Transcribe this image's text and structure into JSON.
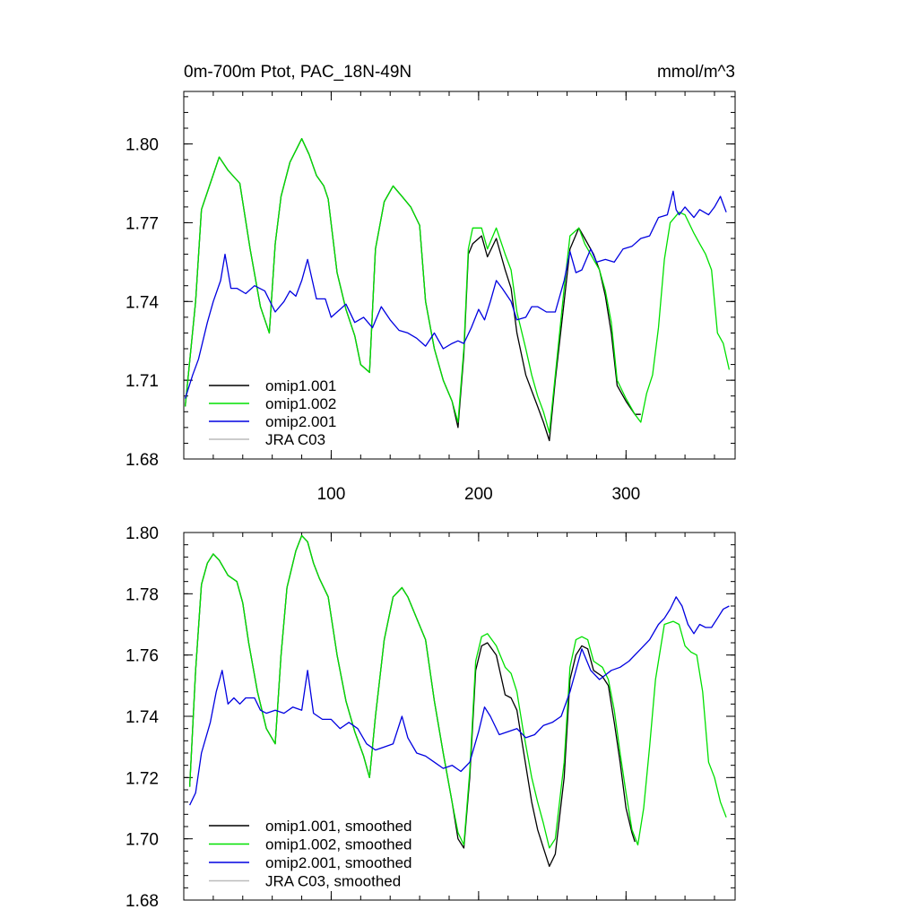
{
  "title_left": "0m-700m Ptot, PAC_18N-49N",
  "title_right": "mmol/m^3",
  "series_colors": {
    "omip1.001": "#000000",
    "omip1.002": "#00e000",
    "omip2.001": "#0000e0",
    "JRA C03": "#bbbbbb"
  },
  "chart_data": [
    {
      "type": "line",
      "title": "0m-700m Ptot, PAC_18N-49N",
      "units": "mmol/m^3",
      "xlim": [
        0,
        374
      ],
      "ylim": [
        1.68,
        1.82
      ],
      "x_ticks": [
        100,
        200,
        300
      ],
      "x_tick_labels": [
        "100",
        "200",
        "300"
      ],
      "y_ticks": [
        1.68,
        1.71,
        1.74,
        1.77,
        1.8
      ],
      "y_tick_labels": [
        "1.68",
        "1.71",
        "1.74",
        "1.77",
        "1.80"
      ],
      "legend": [
        "omip1.001",
        "omip1.002",
        "omip2.001",
        "JRA C03"
      ],
      "series": [
        {
          "name": "omip1.001",
          "color": "#000000",
          "x": [
            1,
            8,
            12,
            18,
            24,
            30,
            38,
            45,
            52,
            58,
            62,
            66,
            72,
            80,
            85,
            90,
            95,
            98,
            104,
            110,
            116,
            120,
            126,
            130,
            136,
            142,
            148,
            154,
            160,
            164,
            170,
            176,
            182,
            186,
            190,
            193,
            196,
            202,
            206,
            212,
            218,
            222,
            226,
            232,
            236,
            240,
            244,
            248,
            252,
            258,
            262,
            268,
            272,
            278,
            282,
            286,
            290,
            294,
            300,
            306,
            310
          ],
          "y": [
            1.7,
            1.74,
            1.775,
            1.785,
            1.795,
            1.79,
            1.785,
            1.76,
            1.738,
            1.728,
            1.762,
            1.78,
            1.793,
            1.802,
            1.796,
            1.788,
            1.784,
            1.779,
            1.751,
            1.737,
            1.727,
            1.716,
            1.713,
            1.76,
            1.778,
            1.784,
            1.78,
            1.776,
            1.769,
            1.74,
            1.722,
            1.71,
            1.702,
            1.692,
            1.72,
            1.758,
            1.762,
            1.765,
            1.757,
            1.764,
            1.752,
            1.745,
            1.728,
            1.712,
            1.706,
            1.7,
            1.694,
            1.687,
            1.71,
            1.74,
            1.76,
            1.768,
            1.764,
            1.758,
            1.752,
            1.742,
            1.728,
            1.708,
            1.702,
            1.697,
            1.697
          ]
        },
        {
          "name": "omip1.002",
          "color": "#00e000",
          "x": [
            1,
            8,
            12,
            18,
            24,
            30,
            38,
            45,
            52,
            58,
            62,
            66,
            72,
            80,
            85,
            90,
            95,
            98,
            104,
            110,
            116,
            120,
            126,
            130,
            136,
            142,
            148,
            154,
            160,
            164,
            170,
            176,
            182,
            186,
            190,
            193,
            196,
            202,
            206,
            212,
            218,
            222,
            226,
            232,
            236,
            240,
            244,
            248,
            252,
            258,
            262,
            268,
            272,
            278,
            282,
            286,
            290,
            294,
            300,
            306,
            310,
            314,
            318,
            322,
            326,
            330,
            336,
            340,
            346,
            350,
            354,
            358,
            362,
            366,
            370
          ],
          "y": [
            1.7,
            1.74,
            1.775,
            1.785,
            1.795,
            1.79,
            1.785,
            1.76,
            1.738,
            1.728,
            1.762,
            1.78,
            1.793,
            1.802,
            1.796,
            1.788,
            1.784,
            1.779,
            1.751,
            1.737,
            1.727,
            1.716,
            1.713,
            1.76,
            1.778,
            1.784,
            1.78,
            1.776,
            1.769,
            1.74,
            1.722,
            1.71,
            1.702,
            1.694,
            1.722,
            1.76,
            1.768,
            1.768,
            1.76,
            1.768,
            1.758,
            1.752,
            1.736,
            1.722,
            1.712,
            1.704,
            1.698,
            1.69,
            1.712,
            1.745,
            1.765,
            1.768,
            1.762,
            1.756,
            1.752,
            1.744,
            1.732,
            1.71,
            1.703,
            1.697,
            1.694,
            1.705,
            1.712,
            1.73,
            1.756,
            1.77,
            1.774,
            1.773,
            1.766,
            1.762,
            1.758,
            1.752,
            1.728,
            1.724,
            1.714
          ]
        },
        {
          "name": "omip2.001",
          "color": "#0000e0",
          "x": [
            1,
            6,
            10,
            16,
            20,
            25,
            28,
            32,
            36,
            42,
            48,
            55,
            62,
            68,
            72,
            76,
            80,
            84,
            90,
            96,
            100,
            106,
            110,
            116,
            122,
            128,
            134,
            140,
            146,
            152,
            158,
            164,
            170,
            176,
            182,
            186,
            190,
            195,
            200,
            204,
            208,
            212,
            216,
            222,
            226,
            232,
            236,
            240,
            246,
            252,
            258,
            262,
            266,
            270,
            276,
            280,
            286,
            292,
            298,
            304,
            310,
            316,
            322,
            328,
            332,
            334,
            336,
            340,
            346,
            350,
            356,
            360,
            364,
            368
          ],
          "y": [
            1.703,
            1.712,
            1.718,
            1.732,
            1.74,
            1.748,
            1.758,
            1.745,
            1.745,
            1.743,
            1.746,
            1.744,
            1.736,
            1.74,
            1.744,
            1.742,
            1.748,
            1.756,
            1.741,
            1.741,
            1.734,
            1.737,
            1.739,
            1.732,
            1.734,
            1.73,
            1.738,
            1.733,
            1.729,
            1.728,
            1.726,
            1.723,
            1.728,
            1.722,
            1.724,
            1.725,
            1.724,
            1.73,
            1.737,
            1.733,
            1.74,
            1.748,
            1.745,
            1.74,
            1.733,
            1.734,
            1.738,
            1.738,
            1.736,
            1.736,
            1.748,
            1.759,
            1.751,
            1.752,
            1.76,
            1.755,
            1.756,
            1.755,
            1.76,
            1.761,
            1.764,
            1.765,
            1.772,
            1.773,
            1.782,
            1.775,
            1.773,
            1.776,
            1.772,
            1.775,
            1.773,
            1.776,
            1.78,
            1.774
          ]
        }
      ]
    },
    {
      "type": "line",
      "xlim": [
        0,
        374
      ],
      "ylim": [
        1.68,
        1.8
      ],
      "x_ticks": [
        100,
        200,
        300
      ],
      "y_ticks": [
        1.68,
        1.7,
        1.72,
        1.74,
        1.76,
        1.78,
        1.8
      ],
      "y_tick_labels": [
        "1.68",
        "1.70",
        "1.72",
        "1.74",
        "1.76",
        "1.78",
        "1.80"
      ],
      "legend": [
        "omip1.001, smoothed",
        "omip1.002, smoothed",
        "omip2.001, smoothed",
        "JRA C03, smoothed"
      ],
      "series": [
        {
          "name": "omip1.001, smoothed",
          "color": "#000000",
          "x": [
            4,
            8,
            12,
            16,
            20,
            24,
            30,
            36,
            40,
            44,
            50,
            56,
            62,
            66,
            70,
            76,
            80,
            84,
            88,
            92,
            98,
            104,
            110,
            116,
            122,
            126,
            130,
            136,
            142,
            148,
            152,
            158,
            164,
            170,
            176,
            182,
            186,
            190,
            194,
            198,
            202,
            206,
            212,
            218,
            222,
            226,
            230,
            236,
            240,
            244,
            248,
            252,
            258,
            262,
            266,
            270,
            274,
            278,
            284,
            288,
            292,
            296,
            300,
            304,
            306
          ],
          "y": [
            1.717,
            1.755,
            1.783,
            1.79,
            1.793,
            1.791,
            1.786,
            1.784,
            1.777,
            1.764,
            1.748,
            1.736,
            1.731,
            1.76,
            1.782,
            1.794,
            1.799,
            1.797,
            1.79,
            1.785,
            1.779,
            1.76,
            1.745,
            1.735,
            1.727,
            1.72,
            1.74,
            1.765,
            1.779,
            1.782,
            1.779,
            1.772,
            1.765,
            1.745,
            1.728,
            1.712,
            1.7,
            1.697,
            1.72,
            1.755,
            1.763,
            1.764,
            1.76,
            1.747,
            1.746,
            1.742,
            1.73,
            1.712,
            1.703,
            1.697,
            1.691,
            1.695,
            1.72,
            1.752,
            1.76,
            1.763,
            1.762,
            1.755,
            1.753,
            1.75,
            1.738,
            1.725,
            1.71,
            1.702,
            1.699
          ]
        },
        {
          "name": "omip1.002, smoothed",
          "color": "#00e000",
          "x": [
            4,
            8,
            12,
            16,
            20,
            24,
            30,
            36,
            40,
            44,
            50,
            56,
            62,
            66,
            70,
            76,
            80,
            84,
            88,
            92,
            98,
            104,
            110,
            116,
            122,
            126,
            130,
            136,
            142,
            148,
            152,
            158,
            164,
            170,
            176,
            182,
            186,
            190,
            194,
            198,
            202,
            206,
            212,
            218,
            222,
            226,
            230,
            236,
            240,
            244,
            248,
            252,
            258,
            262,
            266,
            270,
            274,
            278,
            284,
            288,
            292,
            296,
            300,
            304,
            308,
            312,
            316,
            320,
            326,
            332,
            336,
            340,
            344,
            348,
            352,
            356,
            360,
            364,
            368
          ],
          "y": [
            1.717,
            1.755,
            1.783,
            1.79,
            1.793,
            1.791,
            1.786,
            1.784,
            1.777,
            1.764,
            1.748,
            1.736,
            1.731,
            1.76,
            1.782,
            1.794,
            1.799,
            1.797,
            1.79,
            1.785,
            1.779,
            1.76,
            1.745,
            1.735,
            1.727,
            1.72,
            1.74,
            1.765,
            1.779,
            1.782,
            1.779,
            1.772,
            1.765,
            1.745,
            1.728,
            1.712,
            1.702,
            1.698,
            1.722,
            1.758,
            1.766,
            1.767,
            1.763,
            1.756,
            1.754,
            1.748,
            1.736,
            1.72,
            1.712,
            1.705,
            1.697,
            1.7,
            1.725,
            1.756,
            1.765,
            1.766,
            1.765,
            1.758,
            1.756,
            1.752,
            1.742,
            1.728,
            1.715,
            1.703,
            1.698,
            1.71,
            1.73,
            1.752,
            1.77,
            1.771,
            1.77,
            1.763,
            1.761,
            1.76,
            1.748,
            1.725,
            1.72,
            1.712,
            1.707
          ]
        },
        {
          "name": "omip2.001, smoothed",
          "color": "#0000e0",
          "x": [
            4,
            8,
            12,
            18,
            22,
            26,
            30,
            34,
            38,
            42,
            48,
            52,
            56,
            62,
            68,
            74,
            80,
            84,
            88,
            94,
            100,
            106,
            112,
            118,
            124,
            130,
            136,
            142,
            148,
            152,
            158,
            164,
            170,
            176,
            182,
            188,
            194,
            200,
            204,
            208,
            214,
            220,
            226,
            232,
            238,
            244,
            250,
            256,
            262,
            266,
            270,
            276,
            282,
            290,
            296,
            302,
            310,
            316,
            322,
            326,
            330,
            334,
            338,
            342,
            346,
            350,
            354,
            358,
            362,
            366,
            370
          ],
          "y": [
            1.711,
            1.715,
            1.728,
            1.738,
            1.748,
            1.755,
            1.744,
            1.746,
            1.744,
            1.746,
            1.746,
            1.742,
            1.741,
            1.742,
            1.741,
            1.743,
            1.742,
            1.755,
            1.741,
            1.739,
            1.739,
            1.736,
            1.738,
            1.736,
            1.731,
            1.729,
            1.73,
            1.731,
            1.74,
            1.733,
            1.728,
            1.727,
            1.725,
            1.723,
            1.724,
            1.722,
            1.725,
            1.735,
            1.743,
            1.74,
            1.734,
            1.735,
            1.736,
            1.733,
            1.734,
            1.737,
            1.738,
            1.74,
            1.748,
            1.755,
            1.762,
            1.755,
            1.752,
            1.755,
            1.756,
            1.758,
            1.762,
            1.765,
            1.77,
            1.772,
            1.775,
            1.779,
            1.776,
            1.77,
            1.767,
            1.77,
            1.769,
            1.769,
            1.772,
            1.775,
            1.776
          ]
        }
      ]
    }
  ]
}
